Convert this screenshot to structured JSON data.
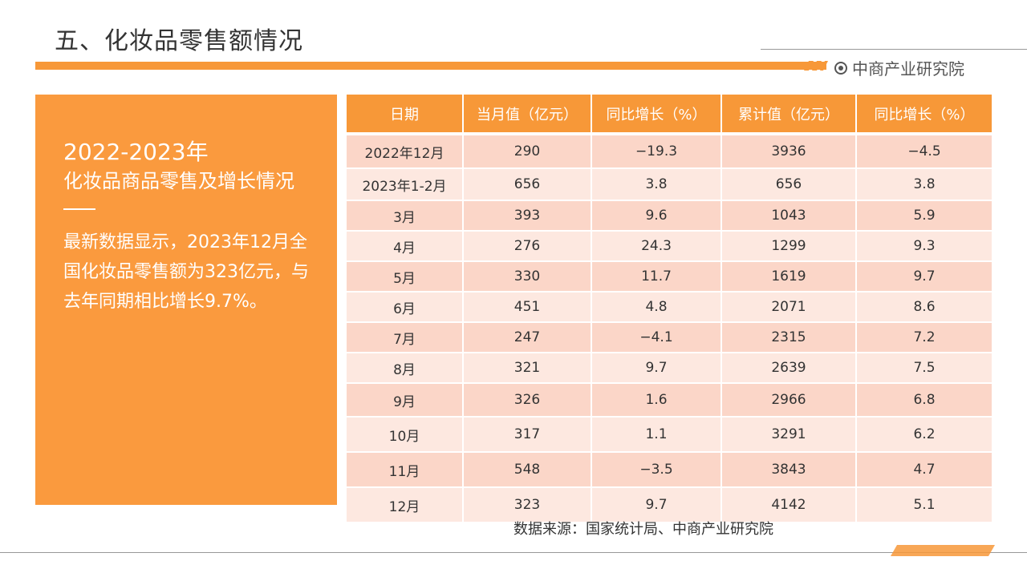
{
  "page": {
    "title": "五、化妆品零售额情况",
    "brand": "中商产业研究院",
    "source": "数据来源：国家统计局、中商产业研究院"
  },
  "left_panel": {
    "year_range": "2022-2023年",
    "subtitle": "化妆品商品零售及增长情况",
    "body": "最新数据显示，2023年12月全国化妆品零售额为323亿元，与去年同期相比增长9.7%。"
  },
  "table": {
    "headers": [
      "日期",
      "当月值（亿元）",
      "同比增长（%）",
      "累计值（亿元）",
      "同比增长（%）"
    ],
    "rows": [
      [
        "2022年12月",
        "290",
        "−19.3",
        "3936",
        "−4.5"
      ],
      [
        "2023年1-2月",
        "656",
        "3.8",
        "656",
        "3.8"
      ],
      [
        "3月",
        "393",
        "9.6",
        "1043",
        "5.9"
      ],
      [
        "4月",
        "276",
        "24.3",
        "1299",
        "9.3"
      ],
      [
        "5月",
        "330",
        "11.7",
        "1619",
        "9.7"
      ],
      [
        "6月",
        "451",
        "4.8",
        "2071",
        "8.6"
      ],
      [
        "7月",
        "247",
        "−4.1",
        "2315",
        "7.2"
      ],
      [
        "8月",
        "321",
        "9.7",
        "2639",
        "7.5"
      ],
      [
        "9月",
        "326",
        "1.6",
        "2966",
        "6.8"
      ],
      [
        "10月",
        "317",
        "1.1",
        "3291",
        "6.2"
      ],
      [
        "11月",
        "548",
        "−3.5",
        "3843",
        "4.7"
      ],
      [
        "12月",
        "323",
        "9.7",
        "4142",
        "5.1"
      ]
    ]
  },
  "colors": {
    "accent": "#f79838",
    "row_dark": "#fbd6c8",
    "row_light": "#fde8e0"
  }
}
